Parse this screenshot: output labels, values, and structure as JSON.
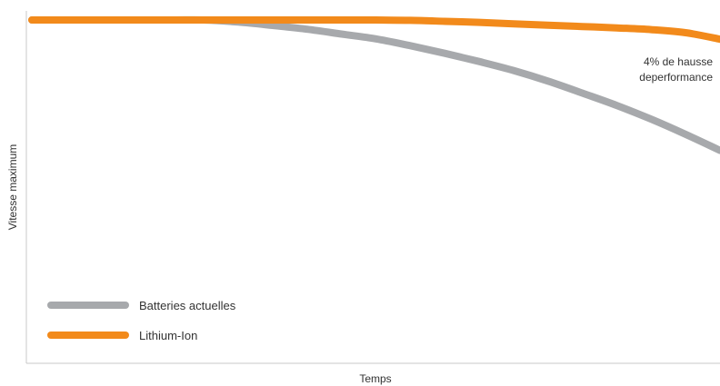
{
  "chart_data": {
    "type": "line",
    "xlabel": "Temps",
    "ylabel": "Vitesse maximum",
    "xlim": [
      0,
      100
    ],
    "ylim": [
      0,
      100
    ],
    "x": [
      0,
      10,
      20,
      25,
      30,
      35,
      40,
      45,
      50,
      55,
      60,
      65,
      70,
      75,
      80,
      85,
      90,
      95,
      100
    ],
    "series": [
      {
        "name": "Batteries actuelles",
        "color": "#a7a9ac",
        "values": [
          100,
          100,
          100,
          100,
          99.4,
          98.4,
          97.3,
          95.9,
          94.5,
          92.5,
          90.3,
          87.9,
          85.3,
          82.2,
          78.7,
          75.1,
          71.1,
          66.7,
          62.0
        ]
      },
      {
        "name": "Lithium-Ion",
        "color": "#f28a1b",
        "values": [
          100,
          100,
          100,
          100,
          100,
          100,
          100,
          100,
          100,
          99.9,
          99.6,
          99.3,
          98.9,
          98.5,
          98.1,
          97.7,
          97.2,
          96.3,
          94.4
        ]
      }
    ],
    "annotation": {
      "lines": [
        "4% de hausse",
        "deperformance"
      ],
      "x": 100,
      "y": 83
    },
    "legend_position": "bottom-left",
    "grid": false
  }
}
